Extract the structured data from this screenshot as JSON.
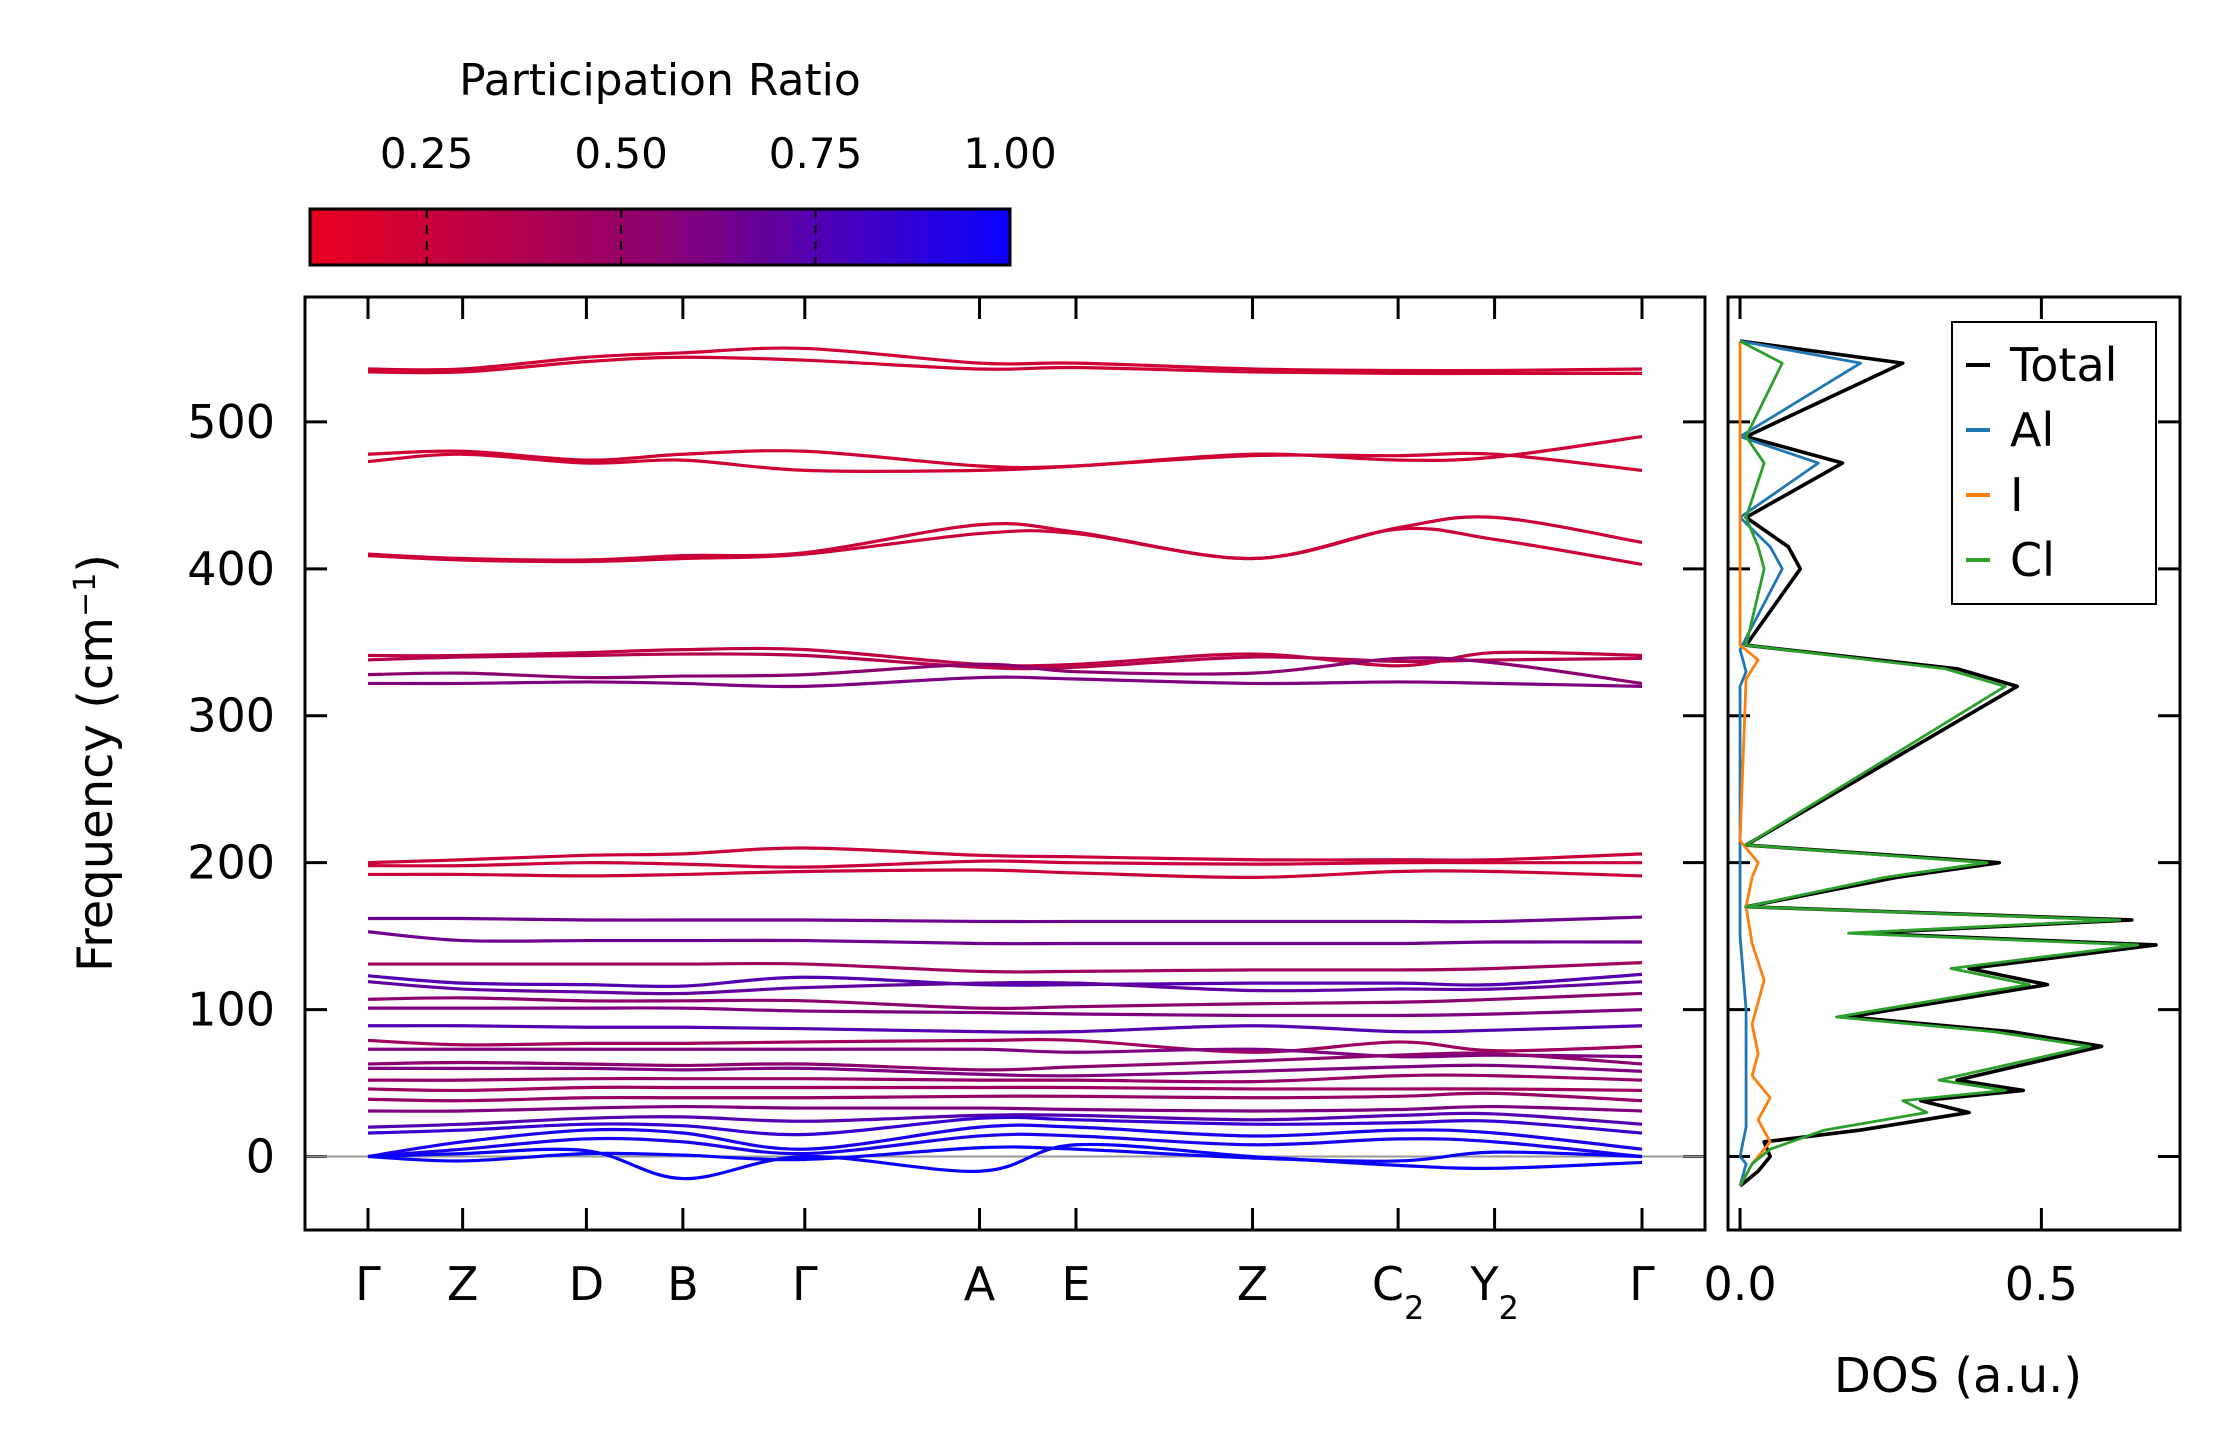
{
  "chart_data": [
    {
      "type": "line",
      "name": "phonon-band-structure",
      "ylabel": "Frequency (cm",
      "ylabel_sup": "−1",
      "ylabel_end": ")",
      "ylim": [
        -50,
        585
      ],
      "yticks": [
        0,
        100,
        200,
        300,
        400,
        500
      ],
      "xlim": [
        0,
        7
      ],
      "high_symmetry_points": [
        {
          "label": "Γ",
          "sub": "",
          "x": 0.0
        },
        {
          "label": "Z",
          "sub": "",
          "x": 0.52
        },
        {
          "label": "D",
          "sub": "",
          "x": 1.2
        },
        {
          "label": "B",
          "sub": "",
          "x": 1.73
        },
        {
          "label": "Γ",
          "sub": "",
          "x": 2.4
        },
        {
          "label": "A",
          "sub": "",
          "x": 3.36
        },
        {
          "label": "E",
          "sub": "",
          "x": 3.89
        },
        {
          "label": "Z",
          "sub": "",
          "x": 4.86
        },
        {
          "label": "C",
          "sub": "2",
          "x": 5.66
        },
        {
          "label": "Y",
          "sub": "2",
          "x": 6.19
        },
        {
          "label": "Γ",
          "sub": "",
          "x": 7.0
        }
      ],
      "color_scale": {
        "title": "Participation Ratio",
        "range": [
          0.1,
          1.0
        ],
        "ticks": [
          "0.25",
          "0.50",
          "0.75",
          "1.00"
        ],
        "tick_values": [
          0.25,
          0.5,
          0.75,
          1.0
        ],
        "low_color": "#e8001e",
        "mid_color": "#8c0070",
        "high_color": "#0a00ff"
      },
      "bands": [
        {
          "y": [
            536,
            536,
            544,
            547,
            550,
            540,
            540,
            536,
            535,
            535,
            536
          ],
          "pr": 0.22
        },
        {
          "y": [
            534,
            534,
            541,
            544,
            542,
            536,
            537,
            534,
            533,
            533,
            533
          ],
          "pr": 0.22
        },
        {
          "y": [
            478,
            480,
            474,
            478,
            480,
            470,
            470,
            478,
            474,
            476,
            490
          ],
          "pr": 0.22
        },
        {
          "y": [
            473,
            478,
            472,
            474,
            467,
            467,
            470,
            477,
            477,
            478,
            467
          ],
          "pr": 0.22
        },
        {
          "y": [
            410,
            407,
            406,
            409,
            411,
            430,
            425,
            407,
            428,
            435,
            418
          ],
          "pr": 0.24
        },
        {
          "y": [
            409,
            406,
            405,
            407,
            410,
            424,
            424,
            407,
            427,
            420,
            403
          ],
          "pr": 0.24
        },
        {
          "y": [
            341,
            341,
            343,
            345,
            345,
            335,
            335,
            342,
            334,
            343,
            341
          ],
          "pr": 0.3
        },
        {
          "y": [
            338,
            340,
            341,
            342,
            341,
            333,
            333,
            340,
            337,
            338,
            339
          ],
          "pr": 0.35
        },
        {
          "y": [
            328,
            329,
            326,
            327,
            328,
            335,
            330,
            329,
            339,
            336,
            322
          ],
          "pr": 0.55
        },
        {
          "y": [
            322,
            322,
            323,
            322,
            320,
            326,
            325,
            322,
            323,
            322,
            320
          ],
          "pr": 0.6
        },
        {
          "y": [
            200,
            202,
            205,
            206,
            210,
            205,
            204,
            202,
            202,
            202,
            206
          ],
          "pr": 0.25
        },
        {
          "y": [
            198,
            198,
            200,
            199,
            197,
            201,
            200,
            199,
            200,
            200,
            200
          ],
          "pr": 0.25
        },
        {
          "y": [
            192,
            192,
            191,
            192,
            194,
            195,
            193,
            190,
            194,
            194,
            191
          ],
          "pr": 0.25
        },
        {
          "y": [
            162,
            162,
            161,
            161,
            161,
            160,
            160,
            160,
            160,
            160,
            163
          ],
          "pr": 0.65
        },
        {
          "y": [
            153,
            147,
            147,
            147,
            147,
            145,
            145,
            145,
            145,
            146,
            146
          ],
          "pr": 0.65
        },
        {
          "y": [
            131,
            131,
            131,
            131,
            131,
            126,
            126,
            127,
            127,
            128,
            132
          ],
          "pr": 0.45
        },
        {
          "y": [
            123,
            118,
            117,
            116,
            122,
            117,
            117,
            118,
            118,
            117,
            124
          ],
          "pr": 0.75
        },
        {
          "y": [
            119,
            114,
            112,
            111,
            115,
            118,
            118,
            113,
            114,
            114,
            119
          ],
          "pr": 0.7
        },
        {
          "y": [
            107,
            108,
            106,
            106,
            106,
            101,
            102,
            104,
            105,
            107,
            111
          ],
          "pr": 0.55
        },
        {
          "y": [
            101,
            101,
            101,
            101,
            99,
            98,
            97,
            96,
            96,
            97,
            100
          ],
          "pr": 0.6
        },
        {
          "y": [
            89,
            89,
            88,
            88,
            87,
            85,
            85,
            89,
            85,
            86,
            89
          ],
          "pr": 0.75
        },
        {
          "y": [
            79,
            76,
            77,
            77,
            78,
            79,
            79,
            71,
            78,
            72,
            75
          ],
          "pr": 0.45
        },
        {
          "y": [
            73,
            73,
            73,
            73,
            73,
            73,
            71,
            73,
            68,
            69,
            68
          ],
          "pr": 0.6
        },
        {
          "y": [
            63,
            64,
            63,
            62,
            63,
            59,
            61,
            65,
            69,
            70,
            63
          ],
          "pr": 0.55
        },
        {
          "y": [
            60,
            60,
            60,
            59,
            60,
            56,
            55,
            58,
            61,
            62,
            58
          ],
          "pr": 0.6
        },
        {
          "y": [
            52,
            52,
            53,
            53,
            53,
            52,
            52,
            51,
            55,
            55,
            52
          ],
          "pr": 0.5
        },
        {
          "y": [
            46,
            45,
            47,
            47,
            47,
            47,
            47,
            46,
            46,
            46,
            45
          ],
          "pr": 0.45
        },
        {
          "y": [
            39,
            38,
            40,
            40,
            40,
            41,
            41,
            40,
            41,
            43,
            38
          ],
          "pr": 0.5
        },
        {
          "y": [
            31,
            31,
            33,
            34,
            33,
            33,
            32,
            31,
            32,
            34,
            31
          ],
          "pr": 0.6
        },
        {
          "y": [
            20,
            22,
            26,
            27,
            24,
            28,
            28,
            25,
            28,
            29,
            22
          ],
          "pr": 0.75
        },
        {
          "y": [
            16,
            18,
            22,
            21,
            15,
            26,
            25,
            22,
            23,
            24,
            16
          ],
          "pr": 0.85
        },
        {
          "y": [
            0,
            10,
            18,
            16,
            5,
            20,
            20,
            14,
            18,
            16,
            5
          ],
          "pr": 0.95
        },
        {
          "y": [
            0,
            5,
            12,
            10,
            2,
            14,
            14,
            8,
            12,
            10,
            0
          ],
          "pr": 0.95
        },
        {
          "y": [
            0,
            -3,
            2,
            1,
            -2,
            6,
            5,
            -1,
            -3,
            3,
            0
          ],
          "pr": 1.0
        },
        {
          "y": [
            0,
            2,
            4,
            -15,
            0,
            -10,
            8,
            0,
            -6,
            -8,
            -4
          ],
          "pr": 1.0
        }
      ]
    },
    {
      "type": "line",
      "name": "density-of-states",
      "xlabel": "DOS (a.u.)",
      "xlim": [
        -0.02,
        0.73
      ],
      "xticks": [
        0.0,
        0.5
      ],
      "xtick_labels": [
        "0.0",
        "0.5"
      ],
      "ylim": [
        -50,
        585
      ],
      "series": [
        {
          "name": "Total",
          "color": "#000000",
          "values": [
            [
              0.0,
              -20
            ],
            [
              0.03,
              -10
            ],
            [
              0.05,
              0
            ],
            [
              0.04,
              10
            ],
            [
              0.2,
              18
            ],
            [
              0.38,
              30
            ],
            [
              0.3,
              38
            ],
            [
              0.47,
              45
            ],
            [
              0.36,
              52
            ],
            [
              0.6,
              75
            ],
            [
              0.45,
              85
            ],
            [
              0.18,
              95
            ],
            [
              0.51,
              117
            ],
            [
              0.38,
              128
            ],
            [
              0.69,
              144
            ],
            [
              0.2,
              152
            ],
            [
              0.65,
              161
            ],
            [
              0.01,
              170
            ],
            [
              0.26,
              190
            ],
            [
              0.43,
              200
            ],
            [
              0.01,
              212
            ],
            [
              0.46,
              320
            ],
            [
              0.36,
              332
            ],
            [
              0.01,
              348
            ],
            [
              0.1,
              400
            ],
            [
              0.08,
              415
            ],
            [
              0.01,
              435
            ],
            [
              0.17,
              472
            ],
            [
              0.01,
              490
            ],
            [
              0.27,
              540
            ],
            [
              0.0,
              555
            ]
          ]
        },
        {
          "name": "Al",
          "color": "#1f77b4",
          "values": [
            [
              0.0,
              -20
            ],
            [
              0.01,
              -5
            ],
            [
              0.0,
              0
            ],
            [
              0.01,
              20
            ],
            [
              0.01,
              60
            ],
            [
              0.01,
              100
            ],
            [
              0.0,
              150
            ],
            [
              0.0,
              200
            ],
            [
              0.0,
              320
            ],
            [
              0.01,
              330
            ],
            [
              0.0,
              345
            ],
            [
              0.07,
              400
            ],
            [
              0.05,
              415
            ],
            [
              0.0,
              435
            ],
            [
              0.13,
              472
            ],
            [
              0.0,
              490
            ],
            [
              0.2,
              540
            ],
            [
              0.0,
              555
            ]
          ]
        },
        {
          "name": "I",
          "color": "#ff7f0e",
          "values": [
            [
              0.0,
              -20
            ],
            [
              0.02,
              -5
            ],
            [
              0.05,
              10
            ],
            [
              0.03,
              25
            ],
            [
              0.05,
              40
            ],
            [
              0.02,
              55
            ],
            [
              0.03,
              70
            ],
            [
              0.02,
              90
            ],
            [
              0.04,
              120
            ],
            [
              0.02,
              145
            ],
            [
              0.01,
              170
            ],
            [
              0.02,
              190
            ],
            [
              0.03,
              200
            ],
            [
              0.0,
              215
            ],
            [
              0.01,
              325
            ],
            [
              0.03,
              338
            ],
            [
              0.0,
              348
            ],
            [
              0.0,
              555
            ]
          ]
        },
        {
          "name": "Cl",
          "color": "#2ca02c",
          "values": [
            [
              0.0,
              -20
            ],
            [
              0.02,
              -5
            ],
            [
              0.05,
              5
            ],
            [
              0.14,
              18
            ],
            [
              0.31,
              30
            ],
            [
              0.27,
              38
            ],
            [
              0.44,
              45
            ],
            [
              0.33,
              52
            ],
            [
              0.58,
              75
            ],
            [
              0.42,
              85
            ],
            [
              0.16,
              95
            ],
            [
              0.48,
              117
            ],
            [
              0.35,
              128
            ],
            [
              0.66,
              144
            ],
            [
              0.18,
              152
            ],
            [
              0.63,
              161
            ],
            [
              0.01,
              170
            ],
            [
              0.24,
              190
            ],
            [
              0.41,
              200
            ],
            [
              0.01,
              212
            ],
            [
              0.44,
              320
            ],
            [
              0.34,
              332
            ],
            [
              0.01,
              348
            ],
            [
              0.04,
              400
            ],
            [
              0.03,
              415
            ],
            [
              0.01,
              435
            ],
            [
              0.04,
              472
            ],
            [
              0.01,
              490
            ],
            [
              0.07,
              540
            ],
            [
              0.0,
              555
            ]
          ]
        }
      ],
      "legend": {
        "position": "top-right",
        "entries": [
          "Total",
          "Al",
          "I",
          "Cl"
        ]
      }
    }
  ]
}
